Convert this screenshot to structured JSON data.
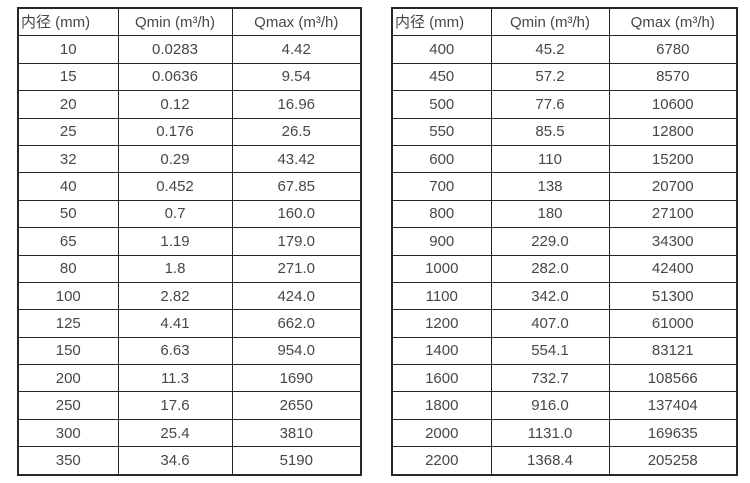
{
  "colors": {
    "border": "#262626",
    "text": "#474747",
    "background": "#ffffff"
  },
  "tables": [
    {
      "name": "flow-range-table-dn10-350",
      "headers": [
        "内径 (mm)",
        "Qmin (m³/h)",
        "Qmax (m³/h)"
      ],
      "rows": [
        [
          "10",
          "0.0283",
          "4.42"
        ],
        [
          "15",
          "0.0636",
          "9.54"
        ],
        [
          "20",
          "0.12",
          "16.96"
        ],
        [
          "25",
          "0.176",
          "26.5"
        ],
        [
          "32",
          "0.29",
          "43.42"
        ],
        [
          "40",
          "0.452",
          "67.85"
        ],
        [
          "50",
          "0.7",
          "160.0"
        ],
        [
          "65",
          "1.19",
          "179.0"
        ],
        [
          "80",
          "1.8",
          "271.0"
        ],
        [
          "100",
          "2.82",
          "424.0"
        ],
        [
          "125",
          "4.41",
          "662.0"
        ],
        [
          "150",
          "6.63",
          "954.0"
        ],
        [
          "200",
          "11.3",
          "1690"
        ],
        [
          "250",
          "17.6",
          "2650"
        ],
        [
          "300",
          "25.4",
          "3810"
        ],
        [
          "350",
          "34.6",
          "5190"
        ]
      ]
    },
    {
      "name": "flow-range-table-dn400-2200",
      "headers": [
        "内径 (mm)",
        "Qmin (m³/h)",
        "Qmax (m³/h)"
      ],
      "rows": [
        [
          "400",
          "45.2",
          "6780"
        ],
        [
          "450",
          "57.2",
          "8570"
        ],
        [
          "500",
          "77.6",
          "10600"
        ],
        [
          "550",
          "85.5",
          "12800"
        ],
        [
          "600",
          "110",
          "15200"
        ],
        [
          "700",
          "138",
          "20700"
        ],
        [
          "800",
          "180",
          "27100"
        ],
        [
          "900",
          "229.0",
          "34300"
        ],
        [
          "1000",
          "282.0",
          "42400"
        ],
        [
          "1100",
          "342.0",
          "51300"
        ],
        [
          "1200",
          "407.0",
          "61000"
        ],
        [
          "1400",
          "554.1",
          "83121"
        ],
        [
          "1600",
          "732.7",
          "108566"
        ],
        [
          "1800",
          "916.0",
          "137404"
        ],
        [
          "2000",
          "1131.0",
          "169635"
        ],
        [
          "2200",
          "1368.4",
          "205258"
        ]
      ]
    }
  ]
}
